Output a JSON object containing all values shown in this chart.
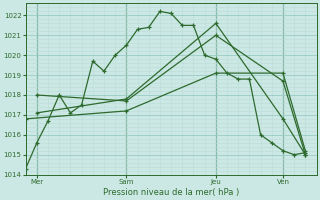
{
  "bg_color": "#cce8e4",
  "grid_major_color": "#99ccc6",
  "grid_minor_color": "#bbddd9",
  "line_color": "#2d6a2d",
  "xlabel": "Pression niveau de la mer( hPa )",
  "ylim": [
    1014,
    1022.6
  ],
  "xlim": [
    0,
    156
  ],
  "yticks": [
    1014,
    1015,
    1016,
    1017,
    1018,
    1019,
    1020,
    1021,
    1022
  ],
  "day_positions": [
    6,
    54,
    102,
    138
  ],
  "day_vlines": [
    6,
    54,
    102,
    138
  ],
  "day_labels": [
    "Mer",
    "Sam",
    "Jeu",
    "Ven"
  ],
  "series": [
    [
      0,
      1014.3,
      6,
      1015.6,
      12,
      1016.7,
      18,
      1018.0,
      24,
      1017.1,
      30,
      1017.5,
      36,
      1019.7,
      42,
      1019.2,
      48,
      1020.0,
      54,
      1020.5,
      60,
      1021.3,
      66,
      1021.4,
      72,
      1022.2,
      78,
      1022.1,
      84,
      1021.5,
      90,
      1021.5,
      96,
      1020.0,
      102,
      1019.8,
      108,
      1019.1,
      114,
      1018.8,
      120,
      1018.8,
      126,
      1016.0,
      132,
      1015.6,
      138,
      1015.2,
      144,
      1015.0,
      150,
      1015.1
    ],
    [
      0,
      1016.8,
      54,
      1017.2,
      102,
      1019.1,
      138,
      1019.1,
      150,
      1015.2
    ],
    [
      6,
      1018.0,
      54,
      1017.7,
      102,
      1021.0,
      138,
      1018.7,
      150,
      1015.0
    ],
    [
      6,
      1017.1,
      54,
      1017.8,
      102,
      1021.6,
      138,
      1016.8,
      150,
      1015.0
    ]
  ]
}
